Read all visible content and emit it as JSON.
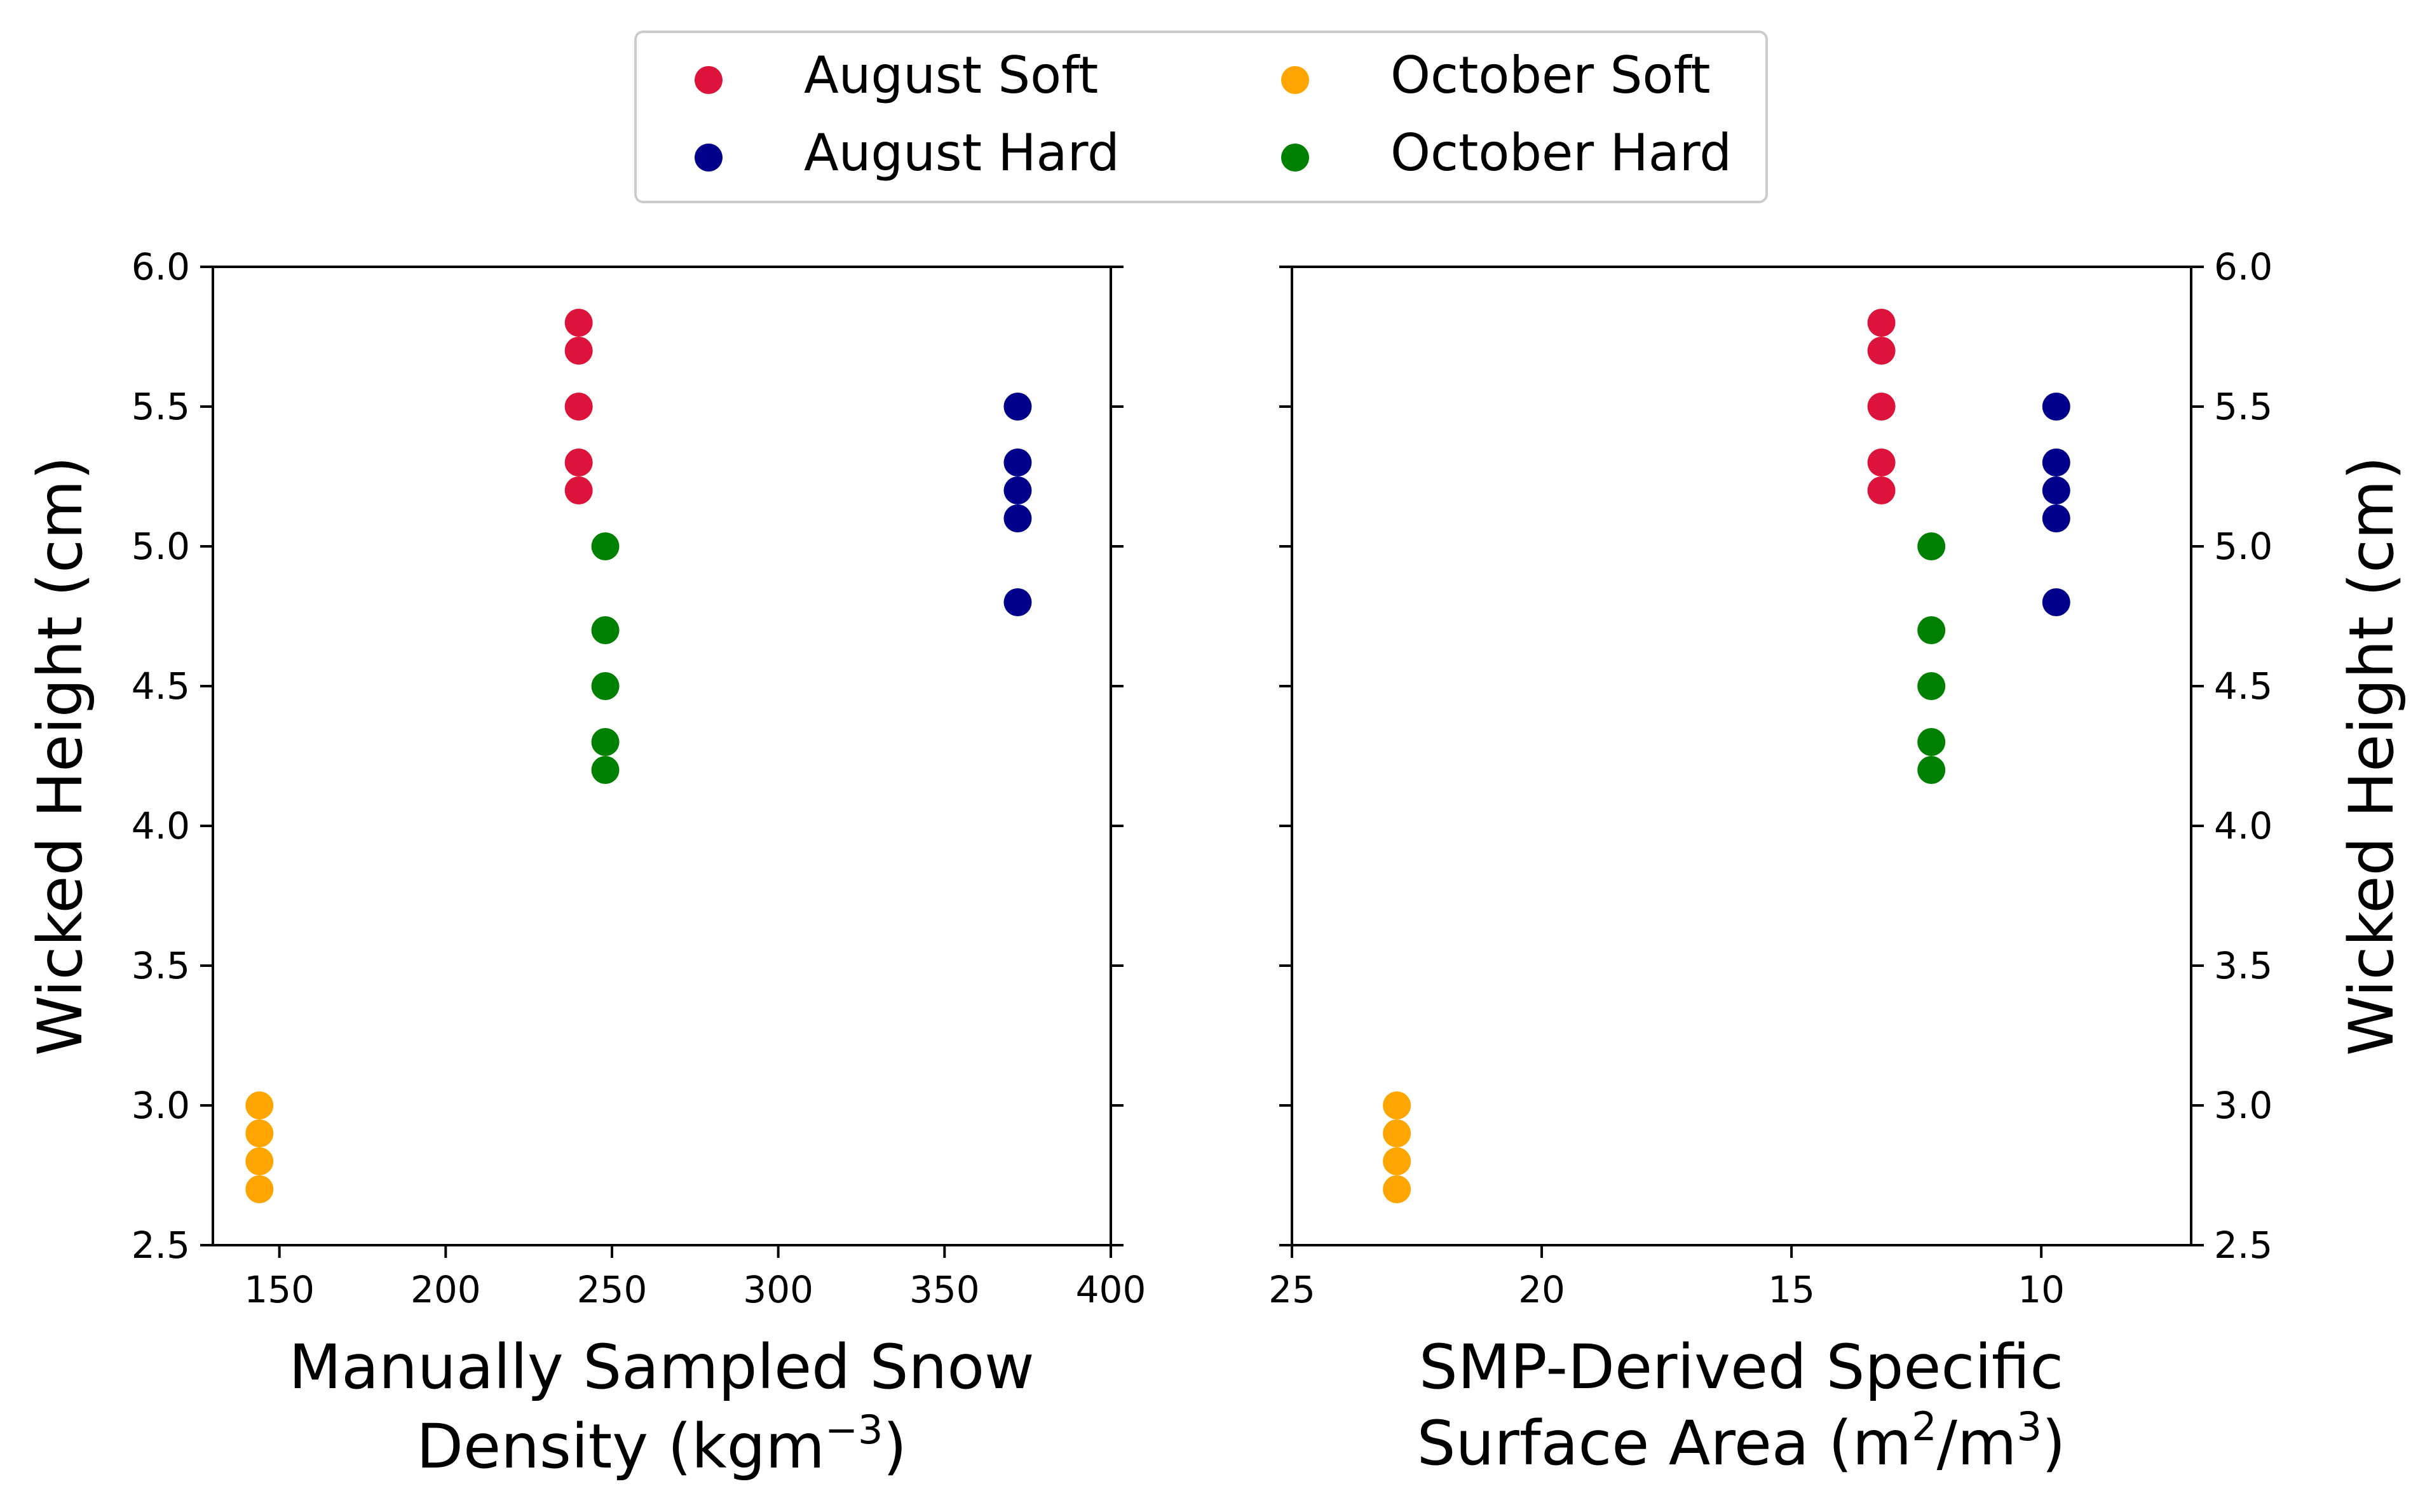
{
  "legend": {
    "placement": "top-center",
    "entries": [
      {
        "label": "August Soft",
        "color": "#DC143C"
      },
      {
        "label": "August Hard",
        "color": "#00008B"
      },
      {
        "label": "October Soft",
        "color": "#FFA500"
      },
      {
        "label": "October Hard",
        "color": "#008000"
      }
    ]
  },
  "chart_data": [
    {
      "type": "scatter",
      "xlabel_line1": "Manually Sampled Snow",
      "xlabel_line2": "Density (kgm",
      "xlabel_sup": "−3",
      "xlabel_tail": ")",
      "ylabel": "Wicked Height (cm)",
      "xlim": [
        130,
        400
      ],
      "ylim": [
        2.5,
        6.0
      ],
      "xticks": [
        "150",
        "200",
        "250",
        "300",
        "350",
        "400"
      ],
      "yticks": [
        "2.5",
        "3.0",
        "3.5",
        "4.0",
        "4.5",
        "5.0",
        "5.5",
        "6.0"
      ],
      "grid": false,
      "series": [
        {
          "name": "August Soft",
          "color": "#DC143C",
          "points": [
            [
              240,
              5.8
            ],
            [
              240,
              5.7
            ],
            [
              240,
              5.5
            ],
            [
              240,
              5.3
            ],
            [
              240,
              5.2
            ]
          ]
        },
        {
          "name": "August Hard",
          "color": "#00008B",
          "points": [
            [
              372,
              5.5
            ],
            [
              372,
              5.3
            ],
            [
              372,
              5.2
            ],
            [
              372,
              5.1
            ],
            [
              372,
              4.8
            ]
          ]
        },
        {
          "name": "October Soft",
          "color": "#FFA500",
          "points": [
            [
              144,
              3.0
            ],
            [
              144,
              2.9
            ],
            [
              144,
              2.8
            ],
            [
              144,
              2.7
            ]
          ]
        },
        {
          "name": "October Hard",
          "color": "#008000",
          "points": [
            [
              248,
              5.0
            ],
            [
              248,
              4.7
            ],
            [
              248,
              4.5
            ],
            [
              248,
              4.3
            ],
            [
              248,
              4.2
            ]
          ]
        }
      ]
    },
    {
      "type": "scatter",
      "xlabel_line1": "SMP-Derived Specific",
      "xlabel_line2": "Surface Area (m",
      "xlabel_sup": "2",
      "xlabel_mid": "/m",
      "xlabel_sup2": "3",
      "xlabel_tail": ")",
      "ylabel": "Wicked Height (cm)",
      "x_inverted": true,
      "xlim": [
        25,
        7
      ],
      "ylim": [
        2.5,
        6.0
      ],
      "xticks": [
        "25",
        "20",
        "15",
        "10"
      ],
      "yticks": [
        "2.5",
        "3.0",
        "3.5",
        "4.0",
        "4.5",
        "5.0",
        "5.5",
        "6.0"
      ],
      "grid": false,
      "series": [
        {
          "name": "August Soft",
          "color": "#DC143C",
          "points": [
            [
              13.2,
              5.8
            ],
            [
              13.2,
              5.7
            ],
            [
              13.2,
              5.5
            ],
            [
              13.2,
              5.3
            ],
            [
              13.2,
              5.2
            ]
          ]
        },
        {
          "name": "August Hard",
          "color": "#00008B",
          "points": [
            [
              9.7,
              5.5
            ],
            [
              9.7,
              5.3
            ],
            [
              9.7,
              5.2
            ],
            [
              9.7,
              5.1
            ],
            [
              9.7,
              4.8
            ]
          ]
        },
        {
          "name": "October Soft",
          "color": "#FFA500",
          "points": [
            [
              22.9,
              3.0
            ],
            [
              22.9,
              2.9
            ],
            [
              22.9,
              2.8
            ],
            [
              22.9,
              2.7
            ]
          ]
        },
        {
          "name": "October Hard",
          "color": "#008000",
          "points": [
            [
              12.2,
              5.0
            ],
            [
              12.2,
              4.7
            ],
            [
              12.2,
              4.5
            ],
            [
              12.2,
              4.3
            ],
            [
              12.2,
              4.2
            ]
          ]
        }
      ]
    }
  ]
}
